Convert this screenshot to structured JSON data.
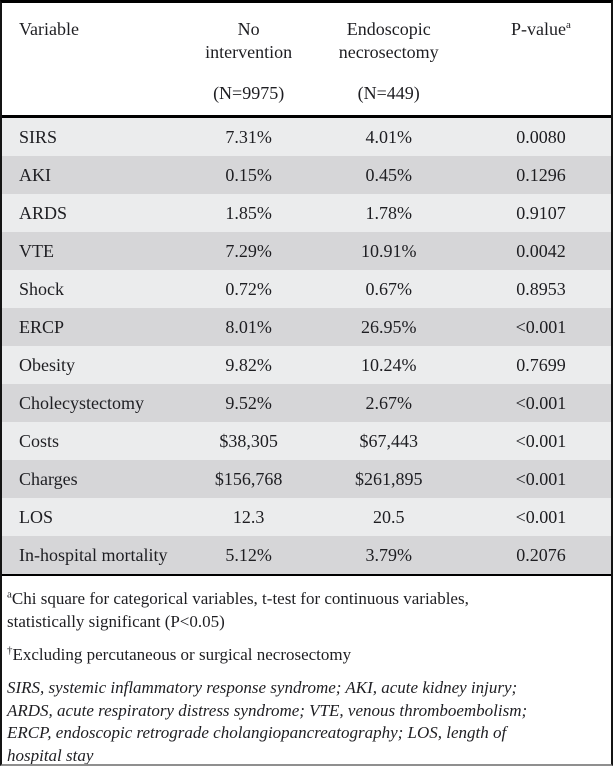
{
  "table": {
    "header": {
      "variable_label": "Variable",
      "col_no_intervention": {
        "line1": "No",
        "line2": "intervention",
        "n_label": "(N=9975)"
      },
      "col_endoscopic": {
        "line1": "Endoscopic",
        "line2": "necrosectomy",
        "n_label": "(N=449)"
      },
      "p_value": {
        "label": "P-value",
        "superscript": "a"
      }
    },
    "rows": [
      {
        "variable": "SIRS",
        "no_intervention": "7.31%",
        "endoscopic": "4.01%",
        "p_value": "0.0080"
      },
      {
        "variable": "AKI",
        "no_intervention": "0.15%",
        "endoscopic": "0.45%",
        "p_value": "0.1296"
      },
      {
        "variable": "ARDS",
        "no_intervention": "1.85%",
        "endoscopic": "1.78%",
        "p_value": "0.9107"
      },
      {
        "variable": "VTE",
        "no_intervention": "7.29%",
        "endoscopic": "10.91%",
        "p_value": "0.0042"
      },
      {
        "variable": "Shock",
        "no_intervention": "0.72%",
        "endoscopic": "0.67%",
        "p_value": "0.8953"
      },
      {
        "variable": "ERCP",
        "no_intervention": "8.01%",
        "endoscopic": "26.95%",
        "p_value": "<0.001"
      },
      {
        "variable": "Obesity",
        "no_intervention": "9.82%",
        "endoscopic": "10.24%",
        "p_value": "0.7699"
      },
      {
        "variable": "Cholecystectomy",
        "no_intervention": "9.52%",
        "endoscopic": "2.67%",
        "p_value": "<0.001"
      },
      {
        "variable": "Costs",
        "no_intervention": "$38,305",
        "endoscopic": "$67,443",
        "p_value": "<0.001"
      },
      {
        "variable": "Charges",
        "no_intervention": "$156,768",
        "endoscopic": "$261,895",
        "p_value": "<0.001"
      },
      {
        "variable": "LOS",
        "no_intervention": "12.3",
        "endoscopic": "20.5",
        "p_value": "<0.001"
      },
      {
        "variable": "In-hospital mortality",
        "no_intervention": "5.12%",
        "endoscopic": "3.79%",
        "p_value": "0.2076"
      }
    ]
  },
  "footnotes": {
    "chi_square": {
      "marker": "a",
      "line1": "Chi square for categorical variables, t-test for continuous variables,",
      "line2": "statistically significant (P<0.05)"
    },
    "dagger": {
      "marker": "†",
      "text": "Excluding percutaneous or surgical necrosectomy"
    },
    "abbreviations": {
      "lines": [
        "SIRS, systemic inflammatory response syndrome; AKI, acute kidney injury;",
        "ARDS, acute respiratory distress syndrome; VTE, venous thromboembolism;",
        "ERCP, endoscopic retrograde cholangiopancreatography; LOS, length of",
        "hospital stay"
      ]
    }
  },
  "colors": {
    "row_light": "#ebeced",
    "row_dark": "#d6d6d8",
    "rule": "#000000",
    "text": "#1e1e22"
  }
}
